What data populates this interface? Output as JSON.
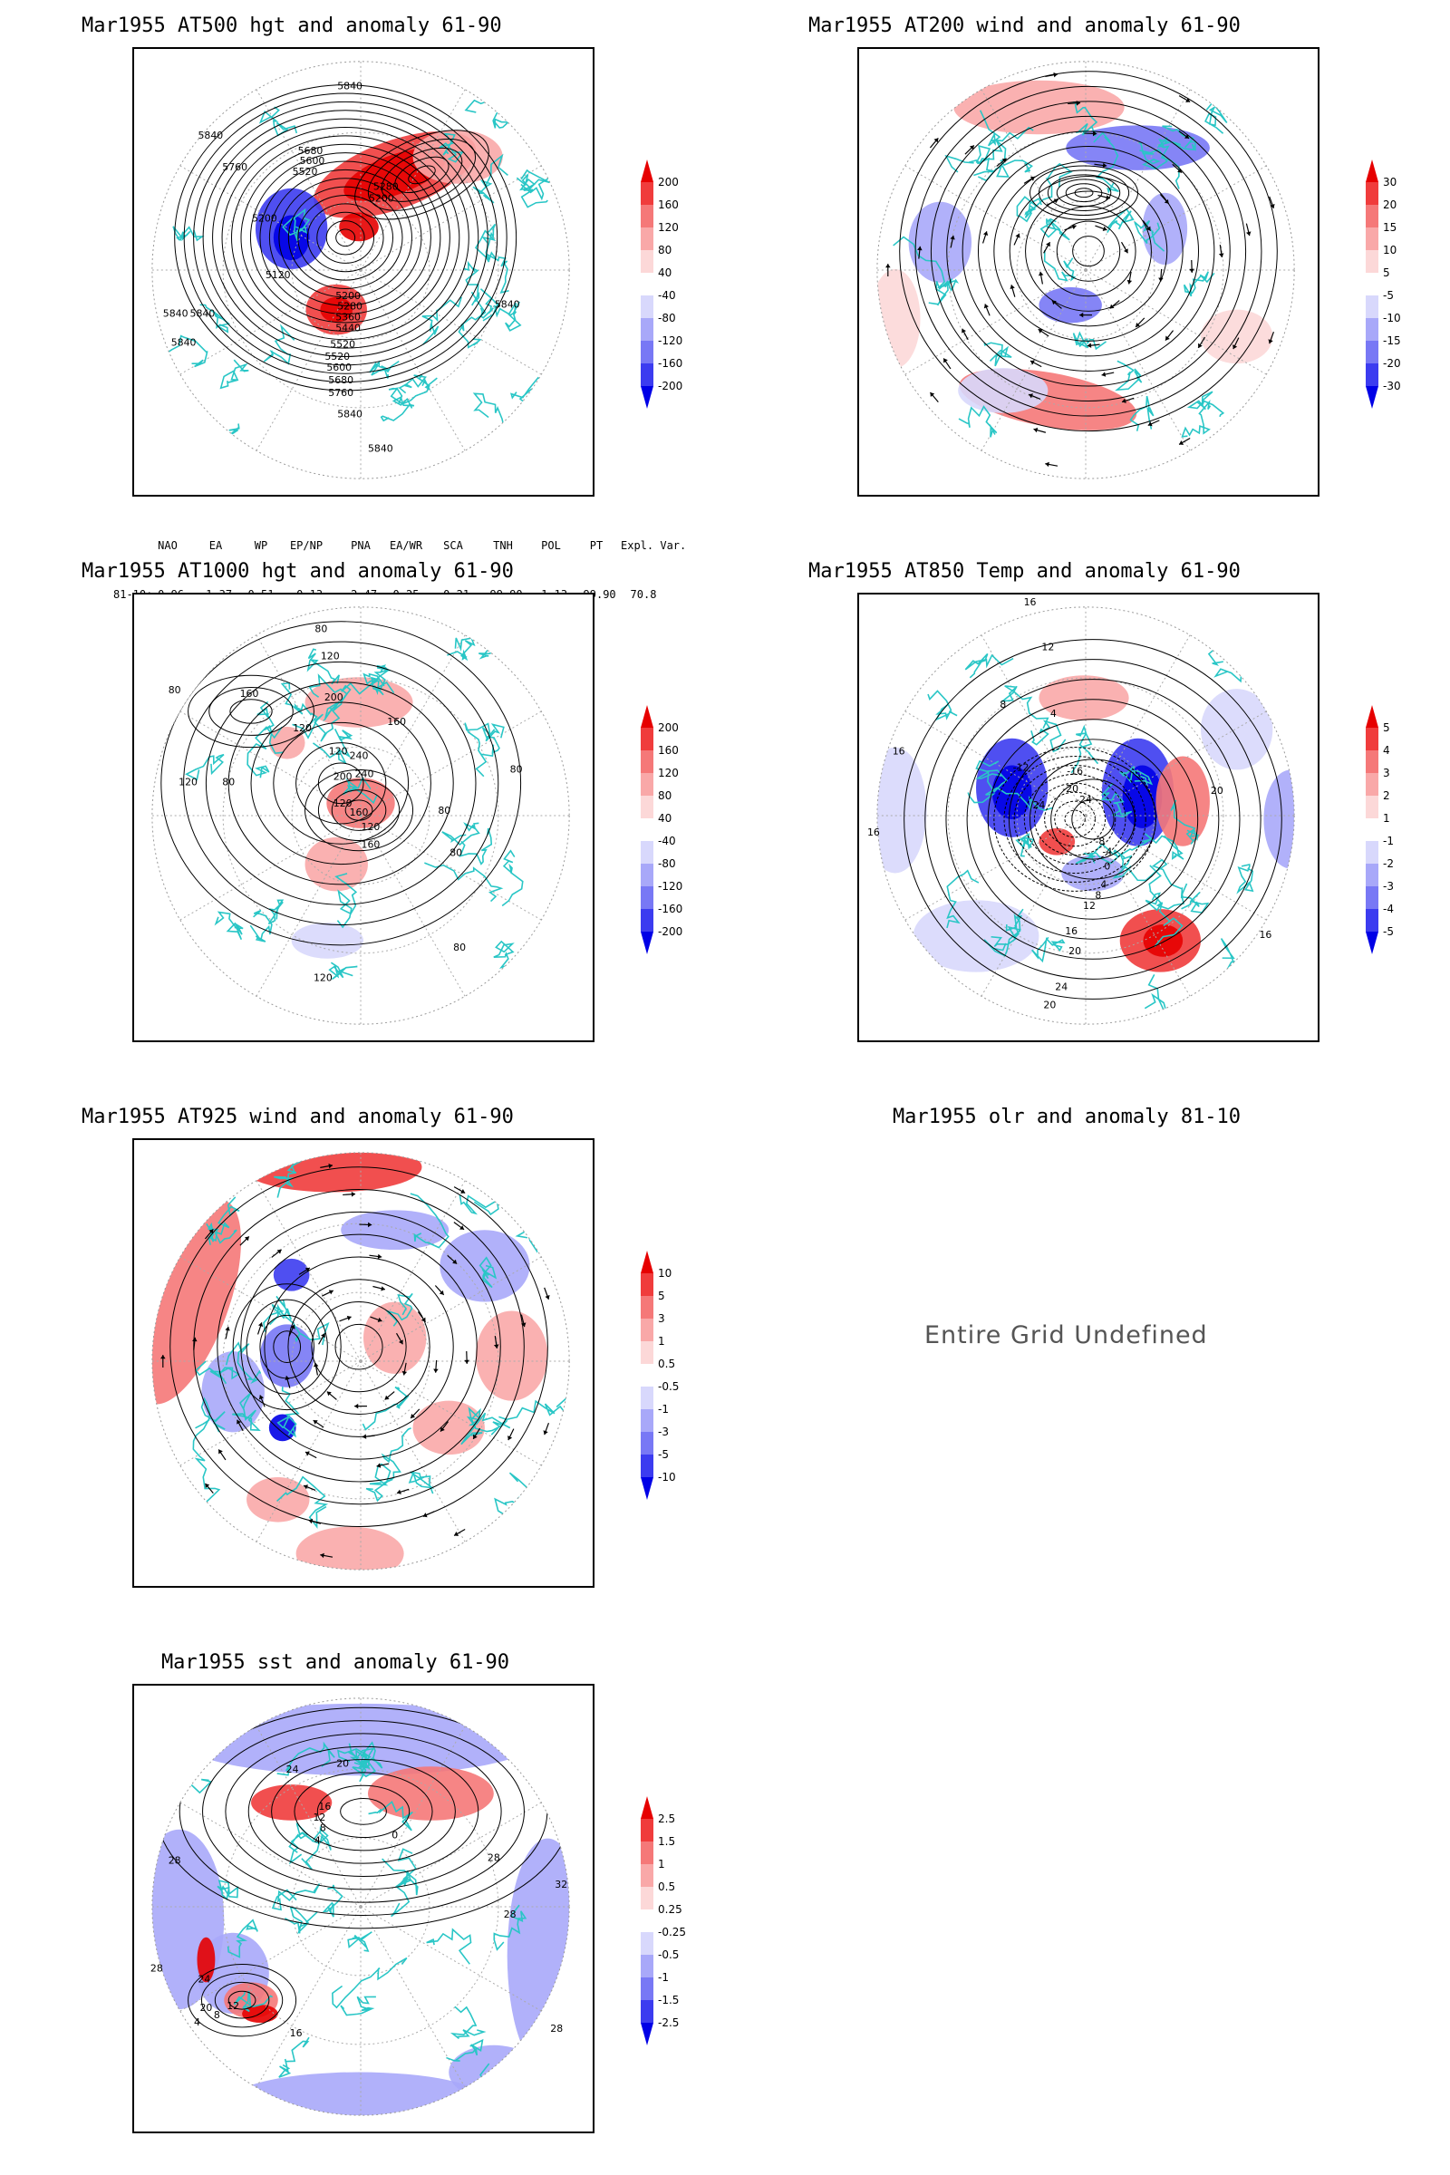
{
  "panels": {
    "p1": {
      "title": "Mar1955 AT500 hgt and anomaly 61-90",
      "labels": [
        "5840",
        "5840",
        "5760",
        "5680",
        "5600",
        "5520",
        "5280",
        "5200",
        "5200",
        "5120",
        "5200",
        "5280",
        "5360",
        "5440",
        "5520",
        "5520",
        "5600",
        "5680",
        "5760",
        "5840",
        "5840",
        "5840",
        "5840",
        "5840",
        "5840"
      ]
    },
    "p2": {
      "title": "Mar1955 AT200 wind and anomaly 61-90"
    },
    "p3": {
      "title": "Mar1955 AT1000 hgt and anomaly 61-90",
      "labels": [
        "80",
        "120",
        "160",
        "200",
        "80",
        "120",
        "160",
        "120",
        "240",
        "240",
        "200",
        "120",
        "160",
        "80",
        "160",
        "120",
        "120",
        "80",
        "80",
        "80",
        "80",
        "120"
      ]
    },
    "p4": {
      "title": "Mar1955 AT850 Temp and anomaly 61-90",
      "labels": [
        "16",
        "12",
        "8",
        "4",
        "16",
        "20",
        "24",
        "-12",
        "-16",
        "-20",
        "-24",
        "-8",
        "-4",
        "0",
        "4",
        "8",
        "12",
        "16",
        "20",
        "24",
        "20",
        "16",
        "16"
      ]
    },
    "p5": {
      "title": "Mar1955 AT925 wind and anomaly 61-90"
    },
    "p6": {
      "title": "Mar1955 olr and anomaly 81-10",
      "message": "Entire Grid Undefined"
    },
    "p7": {
      "title": "Mar1955 sst and anomaly 61-90",
      "labels": [
        "24",
        "20",
        "16",
        "12",
        "8",
        "4",
        "0",
        "28",
        "28",
        "24",
        "20",
        "16",
        "12",
        "8",
        "4",
        "28",
        "28",
        "32",
        "28"
      ]
    }
  },
  "colorbars": {
    "hgt500": [
      "200",
      "160",
      "120",
      "80",
      "40",
      "-40",
      "-80",
      "-120",
      "-160",
      "-200"
    ],
    "wind200": [
      "30",
      "20",
      "15",
      "10",
      "5",
      "-5",
      "-10",
      "-15",
      "-20",
      "-30"
    ],
    "hgt1000": [
      "200",
      "160",
      "120",
      "80",
      "40",
      "-40",
      "-80",
      "-120",
      "-160",
      "-200"
    ],
    "temp850": [
      "5",
      "4",
      "3",
      "2",
      "1",
      "-1",
      "-2",
      "-3",
      "-4",
      "-5"
    ],
    "wind925": [
      "10",
      "5",
      "3",
      "1",
      "0.5",
      "-0.5",
      "-1",
      "-3",
      "-5",
      "-10"
    ],
    "sst": [
      "2.5",
      "1.5",
      "1",
      "0.5",
      "0.25",
      "-0.25",
      "-0.5",
      "-1",
      "-1.5",
      "-2.5"
    ]
  },
  "colors": {
    "pos": [
      "#e60000",
      "#f03c3c",
      "#f57878",
      "#f9a8a8",
      "#fcd8d8"
    ],
    "neg": [
      "#d8d8fc",
      "#a8a8f9",
      "#7878f5",
      "#3c3cf0",
      "#0000e6"
    ],
    "coast": "#29c6c6"
  },
  "teleconnection": {
    "headers": [
      "NAO",
      "EA",
      "WP",
      "EP/NP",
      "PNA",
      "EA/WR",
      "SCA",
      "TNH",
      "POL",
      "PT",
      "Expl. Var."
    ],
    "row_label": "81-10:",
    "values": [
      "-0.96",
      "-1.37",
      "0.51",
      "-0.13",
      "-2.47",
      "0.25",
      "-0.21",
      "-99.90",
      "-1.13",
      "-99.90",
      "70.8"
    ]
  }
}
